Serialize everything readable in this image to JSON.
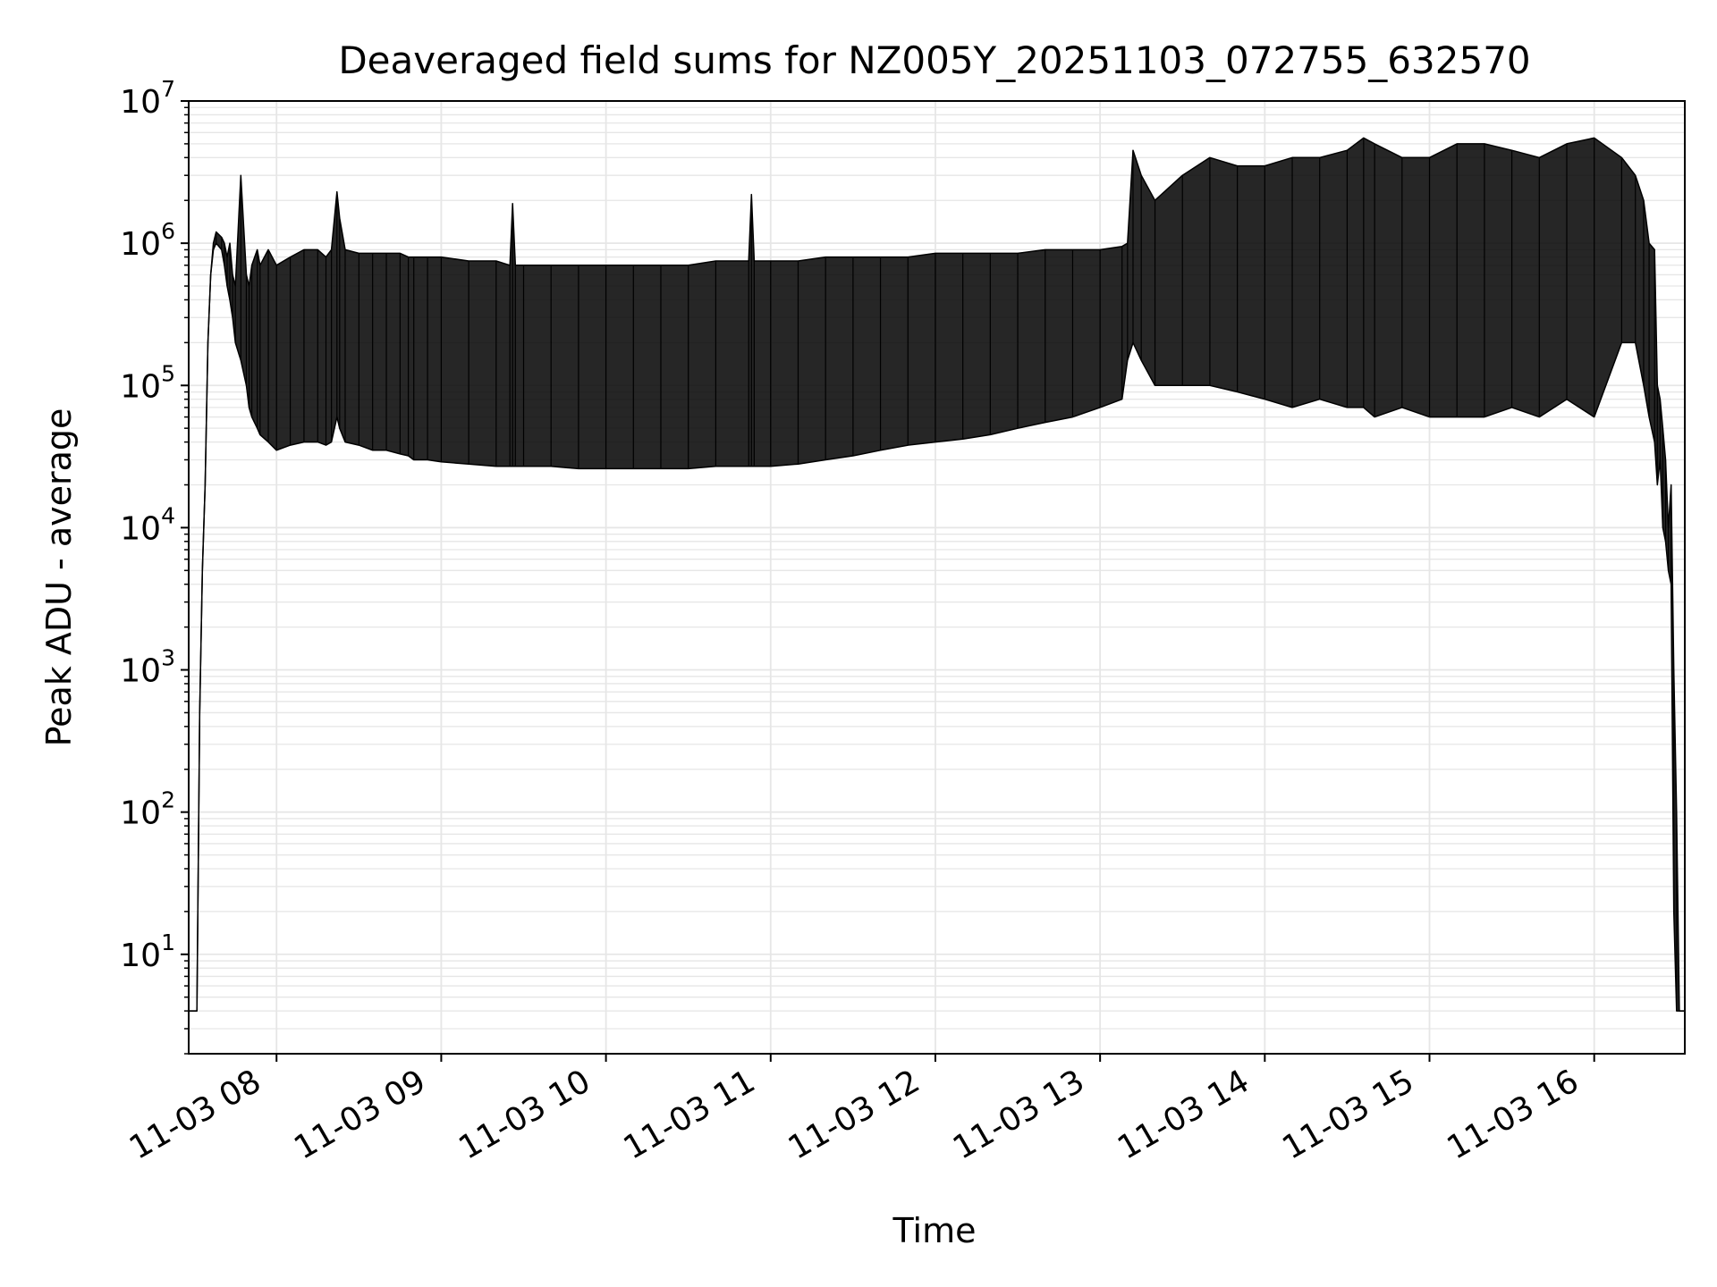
{
  "chart_data": {
    "type": "line",
    "title": "Deaveraged field sums for NZ005Y_20251103_072755_632570",
    "xlabel": "Time",
    "ylabel": "Peak ADU - average",
    "yscale": "log",
    "ylim": [
      2,
      10000000
    ],
    "xlim": [
      "2025-11-03 07:28",
      "2025-11-03 16:33"
    ],
    "x_ticks": [
      {
        "t": "2025-11-03 08:00",
        "label": "11-03 08"
      },
      {
        "t": "2025-11-03 09:00",
        "label": "11-03 09"
      },
      {
        "t": "2025-11-03 10:00",
        "label": "11-03 10"
      },
      {
        "t": "2025-11-03 11:00",
        "label": "11-03 11"
      },
      {
        "t": "2025-11-03 12:00",
        "label": "11-03 12"
      },
      {
        "t": "2025-11-03 13:00",
        "label": "11-03 13"
      },
      {
        "t": "2025-11-03 14:00",
        "label": "11-03 14"
      },
      {
        "t": "2025-11-03 15:00",
        "label": "11-03 15"
      },
      {
        "t": "2025-11-03 16:00",
        "label": "11-03 16"
      }
    ],
    "y_ticks": [
      {
        "value": 10,
        "base": "10",
        "exp": "1"
      },
      {
        "value": 100,
        "base": "10",
        "exp": "2"
      },
      {
        "value": 1000,
        "base": "10",
        "exp": "3"
      },
      {
        "value": 10000,
        "base": "10",
        "exp": "4"
      },
      {
        "value": 100000,
        "base": "10",
        "exp": "5"
      },
      {
        "value": 1000000,
        "base": "10",
        "exp": "6"
      },
      {
        "value": 10000000,
        "base": "10",
        "exp": "7"
      }
    ],
    "grid": true,
    "line_color": "#000000",
    "grid_color": "#e6e6e6",
    "series": [
      {
        "x": [
          "2025-11-03 07:28",
          "2025-11-03 07:29",
          "2025-11-03 07:31",
          "2025-11-03 07:32",
          "2025-11-03 07:33",
          "2025-11-03 07:34",
          "2025-11-03 07:35",
          "2025-11-03 07:36",
          "2025-11-03 07:37",
          "2025-11-03 07:38",
          "2025-11-03 07:40",
          "2025-11-03 07:41",
          "2025-11-03 07:42",
          "2025-11-03 07:43",
          "2025-11-03 07:44",
          "2025-11-03 07:45",
          "2025-11-03 07:47",
          "2025-11-03 07:49",
          "2025-11-03 07:50",
          "2025-11-03 07:51",
          "2025-11-03 07:53",
          "2025-11-03 07:54",
          "2025-11-03 07:57",
          "2025-11-03 08:00",
          "2025-11-03 08:05",
          "2025-11-03 08:10",
          "2025-11-03 08:15",
          "2025-11-03 08:18",
          "2025-11-03 08:20",
          "2025-11-03 08:22",
          "2025-11-03 08:23",
          "2025-11-03 08:25",
          "2025-11-03 08:30",
          "2025-11-03 08:35",
          "2025-11-03 08:40",
          "2025-11-03 08:45",
          "2025-11-03 08:48",
          "2025-11-03 08:50",
          "2025-11-03 08:55",
          "2025-11-03 09:00",
          "2025-11-03 09:10",
          "2025-11-03 09:20",
          "2025-11-03 09:25",
          "2025-11-03 09:26",
          "2025-11-03 09:27",
          "2025-11-03 09:30",
          "2025-11-03 09:40",
          "2025-11-03 09:50",
          "2025-11-03 10:00",
          "2025-11-03 10:10",
          "2025-11-03 10:20",
          "2025-11-03 10:30",
          "2025-11-03 10:40",
          "2025-11-03 10:52",
          "2025-11-03 10:53",
          "2025-11-03 10:54",
          "2025-11-03 11:00",
          "2025-11-03 11:10",
          "2025-11-03 11:20",
          "2025-11-03 11:30",
          "2025-11-03 11:40",
          "2025-11-03 11:50",
          "2025-11-03 12:00",
          "2025-11-03 12:10",
          "2025-11-03 12:20",
          "2025-11-03 12:30",
          "2025-11-03 12:40",
          "2025-11-03 12:50",
          "2025-11-03 13:00",
          "2025-11-03 13:08",
          "2025-11-03 13:10",
          "2025-11-03 13:12",
          "2025-11-03 13:15",
          "2025-11-03 13:20",
          "2025-11-03 13:30",
          "2025-11-03 13:40",
          "2025-11-03 13:50",
          "2025-11-03 14:00",
          "2025-11-03 14:10",
          "2025-11-03 14:20",
          "2025-11-03 14:30",
          "2025-11-03 14:36",
          "2025-11-03 14:40",
          "2025-11-03 14:50",
          "2025-11-03 15:00",
          "2025-11-03 15:10",
          "2025-11-03 15:20",
          "2025-11-03 15:30",
          "2025-11-03 15:40",
          "2025-11-03 15:50",
          "2025-11-03 16:00",
          "2025-11-03 16:10",
          "2025-11-03 16:15",
          "2025-11-03 16:18",
          "2025-11-03 16:20",
          "2025-11-03 16:22",
          "2025-11-03 16:23",
          "2025-11-03 16:24",
          "2025-11-03 16:25",
          "2025-11-03 16:26",
          "2025-11-03 16:27",
          "2025-11-03 16:28",
          "2025-11-03 16:29",
          "2025-11-03 16:30",
          "2025-11-03 16:31",
          "2025-11-03 16:32",
          "2025-11-03 16:33"
        ],
        "y_high": [
          4,
          4,
          4,
          500,
          5000,
          20000,
          200000,
          600000,
          1000000,
          1200000,
          1100000,
          1000000,
          800000,
          1000000,
          600000,
          500000,
          3000000,
          600000,
          500000,
          700000,
          900000,
          700000,
          900000,
          700000,
          800000,
          900000,
          900000,
          800000,
          900000,
          2300000,
          1500000,
          900000,
          850000,
          850000,
          850000,
          850000,
          800000,
          800000,
          800000,
          800000,
          750000,
          750000,
          700000,
          1900000,
          700000,
          700000,
          700000,
          700000,
          700000,
          700000,
          700000,
          700000,
          750000,
          750000,
          2200000,
          750000,
          750000,
          750000,
          800000,
          800000,
          800000,
          800000,
          850000,
          850000,
          850000,
          850000,
          900000,
          900000,
          900000,
          950000,
          1000000,
          4500000,
          3000000,
          2000000,
          3000000,
          4000000,
          3500000,
          3500000,
          4000000,
          4000000,
          4500000,
          5500000,
          5000000,
          4000000,
          4000000,
          5000000,
          5000000,
          4500000,
          4000000,
          5000000,
          5500000,
          4000000,
          3000000,
          2000000,
          1000000,
          900000,
          100000,
          80000,
          50000,
          30000,
          10000,
          20000,
          1000,
          100,
          4,
          4,
          4
        ],
        "y_low": [
          4,
          4,
          4,
          500,
          5000,
          20000,
          200000,
          600000,
          900000,
          1000000,
          900000,
          700000,
          500000,
          400000,
          300000,
          200000,
          150000,
          100000,
          70000,
          60000,
          50000,
          45000,
          40000,
          35000,
          38000,
          40000,
          40000,
          38000,
          40000,
          60000,
          50000,
          40000,
          38000,
          35000,
          35000,
          33000,
          32000,
          30000,
          30000,
          29000,
          28000,
          27000,
          27000,
          27000,
          27000,
          27000,
          27000,
          26000,
          26000,
          26000,
          26000,
          26000,
          27000,
          27000,
          27000,
          27000,
          27000,
          28000,
          30000,
          32000,
          35000,
          38000,
          40000,
          42000,
          45000,
          50000,
          55000,
          60000,
          70000,
          80000,
          150000,
          200000,
          150000,
          100000,
          100000,
          100000,
          90000,
          80000,
          70000,
          80000,
          70000,
          70000,
          60000,
          70000,
          60000,
          60000,
          60000,
          70000,
          60000,
          80000,
          60000,
          200000,
          200000,
          100000,
          60000,
          40000,
          20000,
          30000,
          10000,
          8000,
          5000,
          4000,
          20,
          4,
          4,
          4,
          4
        ]
      }
    ]
  }
}
